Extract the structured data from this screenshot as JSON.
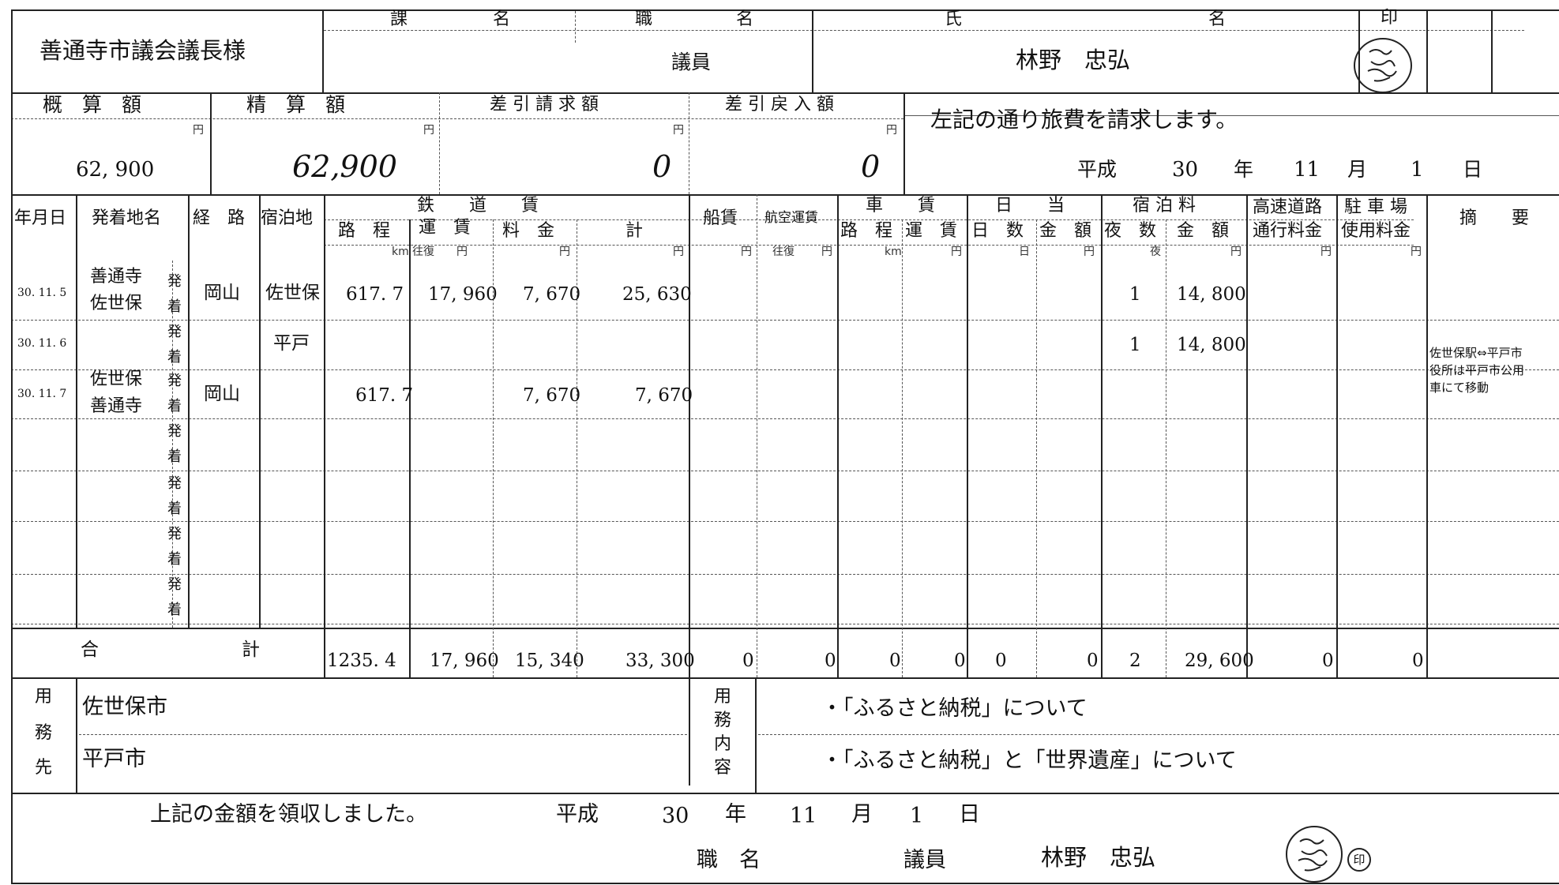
{
  "header": {
    "recipient": "善通寺市議会議長様",
    "col_ka": "課",
    "col_mei": "名",
    "col_shoku": "職",
    "col_mei2": "名",
    "col_shi": "氏",
    "col_mei3": "名",
    "col_in": "印",
    "position": "議員",
    "name": "林野　忠弘"
  },
  "amounts": {
    "gaisan_label": "概　算　額",
    "seisan_label": "精　算　額",
    "seikyu_label": "差 引 請 求 額",
    "modori_label": "差 引 戻 入 額",
    "yen": "円",
    "gaisan": "62, 900",
    "seisan": "62,900",
    "seikyu": "0",
    "modori": "0",
    "statement": "左記の通り旅費を請求します。",
    "date": {
      "era": "平成",
      "year": "30",
      "y": "年",
      "month": "11",
      "m": "月",
      "day": "1",
      "d": "日"
    }
  },
  "table_headers": {
    "date": "年月日",
    "places": "発着地名",
    "route": "経　路",
    "lodging": "宿泊地",
    "rail": "鉄　　道　　賃",
    "rail_distance": "路　程",
    "rail_fare": "運　賃",
    "rail_fee": "料　金",
    "rail_total": "計",
    "ship": "船賃",
    "air": "航空運賃",
    "car": "車　　賃",
    "car_distance": "路　程",
    "car_fare": "運　賃",
    "daily": "日　　当",
    "daily_days": "日　数",
    "daily_amount": "金　額",
    "stay": "宿 泊 料",
    "stay_nights": "夜　数",
    "stay_amount": "金　額",
    "highway": "高速道路",
    "highway2": "通行料金",
    "parking": "駐 車 場",
    "parking2": "使用料金",
    "remarks": "摘　　要",
    "u_km": "km",
    "u_ofuku": "往復",
    "u_yen": "円",
    "u_nichi": "日",
    "u_ya": "夜"
  },
  "rows": [
    {
      "date": "30. 11. 5",
      "from": "善通寺",
      "to": "佐世保",
      "route": "岡山",
      "lodging": "佐世保",
      "distance": "617. 7",
      "fare": "17, 960",
      "fee": "7, 670",
      "total": "25, 630",
      "nights": "1",
      "stay": "14, 800"
    },
    {
      "date": "30. 11. 6",
      "from": "",
      "to": "",
      "route": "",
      "lodging": "平戸",
      "distance": "",
      "fare": "",
      "fee": "",
      "total": "",
      "nights": "1",
      "stay": "14, 800"
    },
    {
      "date": "30. 11. 7",
      "from": "佐世保",
      "to": "善通寺",
      "route": "岡山",
      "lodging": "",
      "distance": "617. 7",
      "fare": "",
      "fee": "7, 670",
      "total": "7, 670",
      "nights": "",
      "stay": ""
    }
  ],
  "hatsu": "発",
  "chaku": "着",
  "remark_lines": [
    "佐世保駅⇔平戸市",
    "役所は平戸市公用",
    "車にて移動"
  ],
  "totals": {
    "label_a": "合",
    "label_b": "計",
    "distance": "1235. 4",
    "fare": "17, 960",
    "fee": "15, 340",
    "total": "33, 300",
    "ship": "0",
    "air": "0",
    "car_distance": "0",
    "car_fare": "0",
    "daily_days": "0",
    "daily_amount": "0",
    "nights": "2",
    "stay": "29, 600",
    "highway": "0",
    "parking": "0"
  },
  "business": {
    "dest_label": [
      "用",
      "務",
      "先"
    ],
    "dest1": "佐世保市",
    "dest2": "平戸市",
    "content_label": [
      "用",
      "務",
      "内",
      "容"
    ],
    "content1": "・「ふるさと納税」について",
    "content2": "・「ふるさと納税」と「世界遺産」について"
  },
  "receipt": {
    "text": "上記の金額を領収しました。",
    "era": "平成",
    "year": "30",
    "y": "年",
    "month": "11",
    "m": "月",
    "day": "1",
    "d": "日",
    "shoku_label": "職　名",
    "position": "議員",
    "name": "林野　忠弘",
    "in_mark": "印"
  }
}
